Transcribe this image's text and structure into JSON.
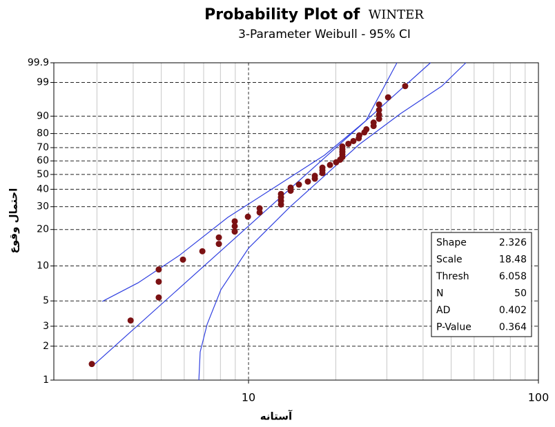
{
  "chart_data": {
    "type": "probability",
    "title": "Probability Plot of",
    "title_variable": "WINTER",
    "subtitle": "3-Parameter Weibull - 95% CI",
    "x_label": "آستانه",
    "y_label": "احتمال وقوع",
    "xlim": [
      2.13,
      100
    ],
    "xticks": [
      10,
      100
    ],
    "x_minor_ticks": [
      3,
      4,
      5,
      6,
      7,
      8,
      9,
      20,
      30,
      40,
      50,
      60,
      70,
      80,
      90
    ],
    "xscale": "log",
    "ylim": [
      1,
      99.9
    ],
    "yticks": [
      1,
      2,
      3,
      5,
      10,
      20,
      30,
      40,
      50,
      60,
      70,
      80,
      90,
      99,
      99.9
    ],
    "yscale": "weibull",
    "grid": true,
    "series": [
      {
        "color": "#7b1113",
        "x": [
          2.88,
          3.92,
          4.9,
          4.9,
          4.9,
          5.94,
          6.93,
          7.9,
          7.9,
          8.96,
          8.96,
          8.96,
          9.95,
          10.92,
          10.92,
          12.94,
          12.94,
          12.94,
          12.94,
          13.97,
          13.97,
          14.92,
          16.02,
          16.93,
          16.93,
          17.98,
          17.98,
          17.98,
          19.1,
          20.05,
          20.7,
          21.07,
          21.07,
          21.07,
          21.07,
          21.07,
          22.1,
          23.0,
          24.0,
          24.1,
          25.1,
          25.5,
          27.0,
          27.0,
          28.2,
          28.2,
          28.2,
          28.2,
          30.3,
          34.7
        ],
        "values": [
          1.39,
          3.37,
          5.36,
          7.34,
          9.33,
          11.31,
          13.29,
          15.28,
          17.26,
          19.25,
          21.23,
          23.21,
          25.2,
          27.18,
          29.17,
          31.15,
          33.13,
          35.12,
          37.1,
          39.09,
          41.07,
          43.06,
          45.04,
          47.02,
          49.01,
          50.99,
          52.98,
          54.96,
          56.94,
          58.93,
          60.91,
          62.9,
          64.88,
          66.87,
          68.85,
          70.83,
          72.82,
          74.8,
          76.79,
          78.77,
          80.75,
          82.74,
          84.72,
          86.71,
          88.69,
          90.67,
          92.66,
          94.64,
          96.63,
          98.61
        ]
      }
    ],
    "line_color": "#2f3fe0",
    "ci_lines": [
      {
        "x": [
          3.13,
          4.16,
          5.78,
          8.48,
          12.45,
          18.28,
          25.4,
          32.5
        ],
        "values": [
          4.95,
          7.18,
          12.3,
          24.9,
          41.9,
          64.3,
          87.7,
          99.9
        ]
      },
      {
        "x": [
          6.74,
          6.81,
          7.2,
          8.03,
          10,
          13.9,
          18.28,
          24.0,
          33.4,
          46.4,
          56.2
        ],
        "values": [
          1.0,
          1.78,
          3.13,
          6.26,
          14.1,
          29.9,
          49.0,
          72.1,
          91.1,
          98.6,
          99.9
        ]
      }
    ],
    "stats": [
      {
        "label": "Shape",
        "value": 2.326
      },
      {
        "label": "Scale",
        "value": 18.48
      },
      {
        "label": "Thresh",
        "value": 6.058
      },
      {
        "label": "N",
        "value": 50
      },
      {
        "label": "AD",
        "value": 0.402
      },
      {
        "label": "P-Value",
        "value": 0.364
      }
    ]
  }
}
